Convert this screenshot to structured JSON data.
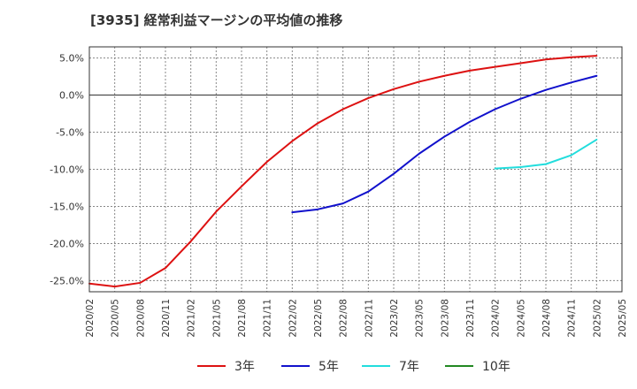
{
  "chart_data": {
    "type": "line",
    "title": "[3935]  経常利益マージンの平均値の推移",
    "xlabel": "",
    "ylabel": "",
    "x_ticks": [
      "2020/02",
      "2020/05",
      "2020/08",
      "2020/11",
      "2021/02",
      "2021/05",
      "2021/08",
      "2021/11",
      "2022/02",
      "2022/05",
      "2022/08",
      "2022/11",
      "2023/02",
      "2023/05",
      "2023/08",
      "2023/11",
      "2024/02",
      "2024/05",
      "2024/08",
      "2024/11",
      "2025/02",
      "2025/05"
    ],
    "y_ticks": [
      {
        "value": 5,
        "label": "5.0%"
      },
      {
        "value": 0,
        "label": "0.0%"
      },
      {
        "value": -5,
        "label": "-5.0%"
      },
      {
        "value": -10,
        "label": "-10.0%"
      },
      {
        "value": -15,
        "label": "-15.0%"
      },
      {
        "value": -20,
        "label": "-20.0%"
      },
      {
        "value": -25,
        "label": "-25.0%"
      }
    ],
    "ylim": [
      -26.5,
      6.5
    ],
    "grid": true,
    "legend_position": "bottom",
    "series": [
      {
        "name": "3年",
        "color": "#dd1111",
        "x": [
          "2020/02",
          "2020/05",
          "2020/08",
          "2020/11",
          "2021/02",
          "2021/05",
          "2021/08",
          "2021/11",
          "2022/02",
          "2022/05",
          "2022/08",
          "2022/11",
          "2023/02",
          "2023/05",
          "2023/08",
          "2023/11",
          "2024/02",
          "2024/05",
          "2024/08",
          "2024/11",
          "2025/02"
        ],
        "values": [
          -25.4,
          -25.8,
          -25.3,
          -23.3,
          -19.7,
          -15.7,
          -12.3,
          -9.0,
          -6.2,
          -3.8,
          -1.9,
          -0.4,
          0.8,
          1.8,
          2.6,
          3.3,
          3.8,
          4.3,
          4.8,
          5.1,
          5.3
        ]
      },
      {
        "name": "5年",
        "color": "#1111cc",
        "x": [
          "2022/02",
          "2022/05",
          "2022/08",
          "2022/11",
          "2023/02",
          "2023/05",
          "2023/08",
          "2023/11",
          "2024/02",
          "2024/05",
          "2024/08",
          "2024/11",
          "2025/02"
        ],
        "values": [
          -15.8,
          -15.4,
          -14.6,
          -13.0,
          -10.6,
          -7.9,
          -5.6,
          -3.6,
          -1.9,
          -0.5,
          0.7,
          1.7,
          2.6
        ]
      },
      {
        "name": "7年",
        "color": "#22dddd",
        "x": [
          "2024/02",
          "2024/05",
          "2024/08",
          "2024/11",
          "2025/02"
        ],
        "values": [
          -9.9,
          -9.7,
          -9.3,
          -8.1,
          -6.0
        ]
      },
      {
        "name": "10年",
        "color": "#228822",
        "x": [],
        "values": []
      }
    ]
  }
}
